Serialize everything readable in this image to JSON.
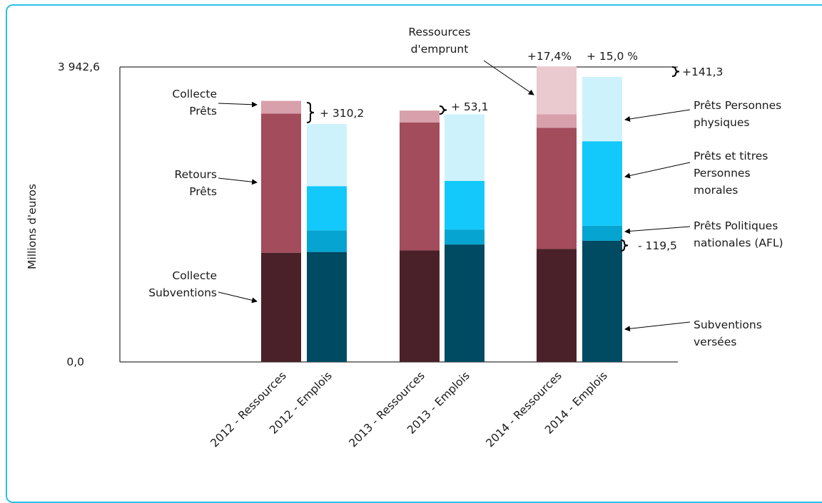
{
  "chart_data": {
    "type": "bar",
    "stacked": true,
    "ylabel": "Millions d'euros",
    "ylim": [
      0,
      3942.6
    ],
    "y_tick_labels": [
      "0,0",
      "3 942,6"
    ],
    "categories": [
      "2012 - Ressources",
      "2012 - Emplois",
      "2013 - Ressources",
      "2013 - Emplois",
      "2014 - Ressources",
      "2014 - Emplois"
    ],
    "series": [
      {
        "name": "Collecte Subventions",
        "color": "#4a2129",
        "values": [
          1460,
          0,
          1490,
          0,
          1510,
          0
        ]
      },
      {
        "name": "Retours Prêts",
        "color": "#a34c5c",
        "values": [
          1860,
          0,
          1710,
          0,
          1620,
          0
        ]
      },
      {
        "name": "Collecte Prêts",
        "color": "#d8a0aa",
        "values": [
          170,
          0,
          160,
          0,
          180,
          0
        ]
      },
      {
        "name": "Ressources d'emprunt",
        "color": "#eac9cf",
        "values": [
          0,
          0,
          0,
          0,
          640,
          0
        ]
      },
      {
        "name": "Subventions versées",
        "color": "#004a62",
        "values": [
          0,
          1470,
          0,
          1570,
          0,
          1620
        ]
      },
      {
        "name": "Prêts Politiques nationales (AFL)",
        "color": "#05a4d1",
        "values": [
          0,
          290,
          0,
          200,
          0,
          200
        ]
      },
      {
        "name": "Prêts et titres Personnes morales",
        "color": "#13c9fb",
        "values": [
          0,
          590,
          0,
          650,
          0,
          1130
        ]
      },
      {
        "name": "Prêts Personnes physiques",
        "color": "#cdf2fc",
        "values": [
          0,
          830,
          0,
          890,
          0,
          860
        ]
      }
    ],
    "annotations": {
      "left_labels": [
        {
          "lines": [
            "Collecte",
            "Prêts"
          ],
          "series": 2
        },
        {
          "lines": [
            "Retours",
            "Prêts"
          ],
          "series": 1
        },
        {
          "lines": [
            "Collecte",
            "Subventions"
          ],
          "series": 0
        }
      ],
      "top_label": {
        "lines": [
          "Ressources",
          "d'emprunt"
        ],
        "series": 3
      },
      "right_labels": [
        {
          "lines": [
            "Prêts Personnes",
            "physiques"
          ],
          "series": 7
        },
        {
          "lines": [
            "Prêts et titres",
            "Personnes",
            "morales"
          ],
          "series": 6
        },
        {
          "lines": [
            "Prêts Politiques",
            "nationales (AFL)"
          ],
          "series": 5
        },
        {
          "lines": [
            "Subventions",
            "versées"
          ],
          "series": 4
        }
      ],
      "differences": [
        "+ 310,2",
        "+ 53,1",
        "+141,3",
        "- 119,5"
      ],
      "growth": [
        "+17,4%",
        "+ 15,0 %"
      ]
    }
  }
}
